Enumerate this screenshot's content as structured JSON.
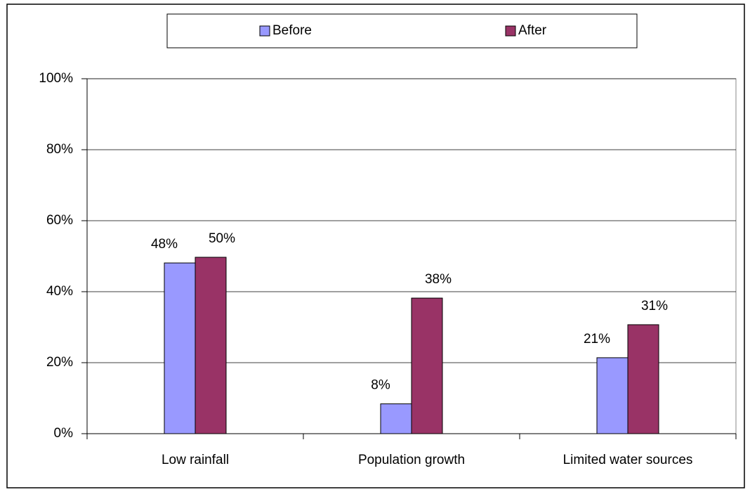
{
  "chart_data": {
    "type": "bar",
    "categories": [
      "Low rainfall",
      "Population growth",
      "Limited water sources"
    ],
    "series": [
      {
        "name": "Before",
        "color": "#9999ff",
        "values": [
          48.1,
          8.4,
          21.4
        ],
        "value_labels": [
          "48%",
          "8%",
          "21%"
        ]
      },
      {
        "name": "After",
        "color": "#993366",
        "values": [
          49.7,
          38.2,
          30.7
        ],
        "value_labels": [
          "50%",
          "38%",
          "31%"
        ]
      }
    ],
    "ylim": [
      0,
      100
    ],
    "yticks": [
      {
        "value": 0,
        "label": "0%"
      },
      {
        "value": 20,
        "label": "20%"
      },
      {
        "value": 40,
        "label": "40%"
      },
      {
        "value": 60,
        "label": "60%"
      },
      {
        "value": 80,
        "label": "80%"
      },
      {
        "value": 100,
        "label": "100%"
      }
    ],
    "grid": true
  }
}
